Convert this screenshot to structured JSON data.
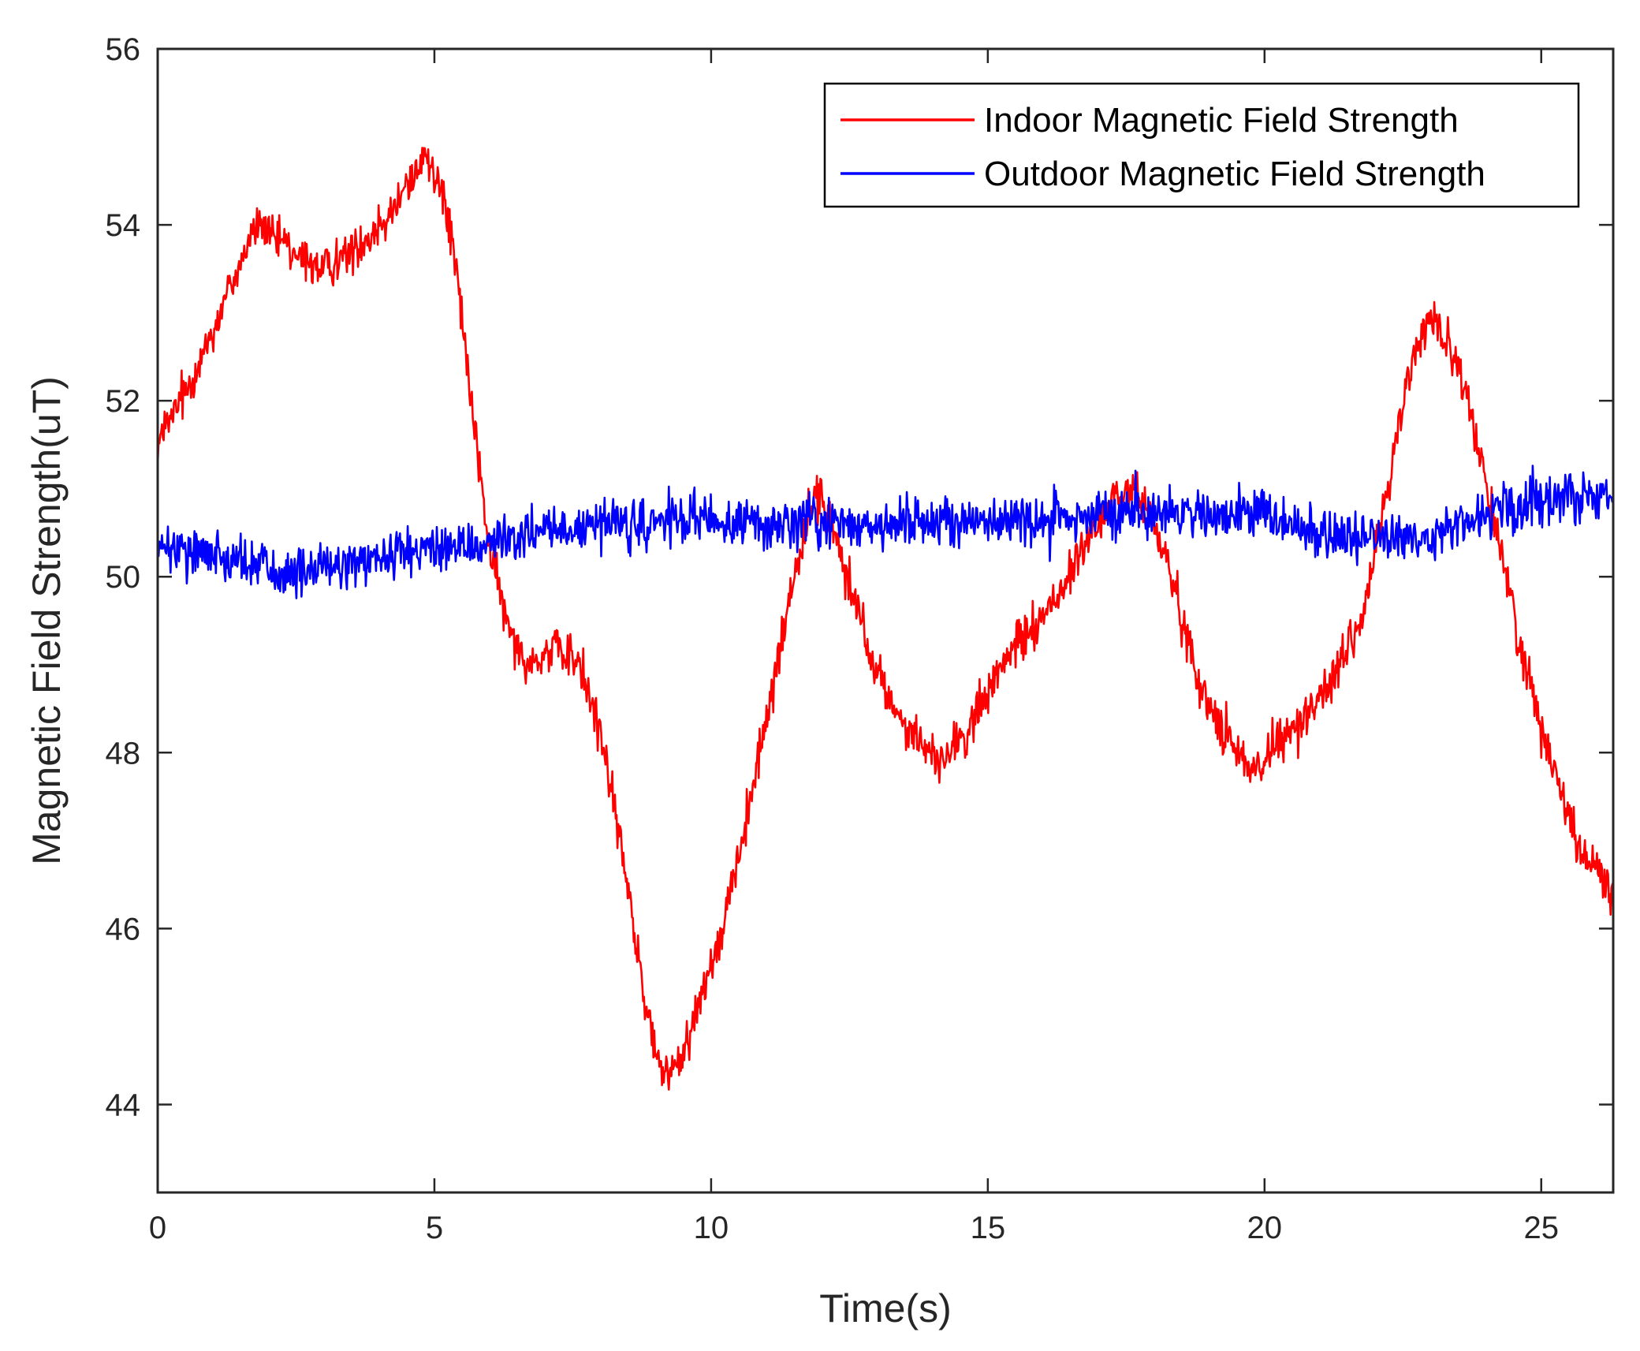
{
  "chart_data": {
    "type": "line",
    "title": "",
    "xlabel": "Time(s)",
    "ylabel": "Magnetic Field Strength(uT)",
    "xlim": [
      0,
      26.3
    ],
    "ylim": [
      43,
      56
    ],
    "xticks": [
      0,
      5,
      10,
      15,
      20,
      25
    ],
    "yticks": [
      44,
      46,
      48,
      50,
      52,
      54,
      56
    ],
    "xtick_labels": [
      "0",
      "5",
      "10",
      "15",
      "20",
      "25"
    ],
    "ytick_labels": [
      "44",
      "46",
      "48",
      "50",
      "52",
      "54",
      "56"
    ],
    "grid": false,
    "legend_position": "top-right",
    "series": [
      {
        "name": "Indoor Magnetic Field Strength",
        "color": "#ff0000",
        "noise": 0.45,
        "x": [
          0,
          0.5,
          1.0,
          1.5,
          1.8,
          2.2,
          2.6,
          3.0,
          3.5,
          4.0,
          4.5,
          4.8,
          5.1,
          5.4,
          5.7,
          6.0,
          6.3,
          6.7,
          7.2,
          7.6,
          8.0,
          8.4,
          8.8,
          9.1,
          9.5,
          10.0,
          10.5,
          11.0,
          11.5,
          11.9,
          12.3,
          12.8,
          13.3,
          13.8,
          14.2,
          14.7,
          15.2,
          15.6,
          16.2,
          16.8,
          17.3,
          17.7,
          18.2,
          18.6,
          19.0,
          19.5,
          19.8,
          20.3,
          20.8,
          21.3,
          21.8,
          22.2,
          22.6,
          23.0,
          23.3,
          23.7,
          24.2,
          24.7,
          25.2,
          25.7,
          26.3
        ],
        "y": [
          51.5,
          52.1,
          52.8,
          53.6,
          54.0,
          53.8,
          53.6,
          53.5,
          53.7,
          54.0,
          54.4,
          54.8,
          54.5,
          53.5,
          51.8,
          50.3,
          49.5,
          49.0,
          49.2,
          49.0,
          48.3,
          46.8,
          45.2,
          44.3,
          44.6,
          45.6,
          46.8,
          48.4,
          50.0,
          51.0,
          50.4,
          49.2,
          48.5,
          48.1,
          47.9,
          48.3,
          48.9,
          49.3,
          49.7,
          50.4,
          50.9,
          51.0,
          50.3,
          49.3,
          48.5,
          48.0,
          47.8,
          48.1,
          48.5,
          48.9,
          49.6,
          51.0,
          52.3,
          53.0,
          52.7,
          51.9,
          50.5,
          49.0,
          47.9,
          46.9,
          46.4
        ]
      },
      {
        "name": "Outdoor Magnetic Field Strength",
        "color": "#0000ff",
        "noise": 0.5,
        "x": [
          0,
          1.0,
          2.0,
          2.5,
          3.0,
          4.0,
          5.0,
          6.0,
          7.0,
          8.0,
          9.0,
          10.0,
          11.0,
          12.0,
          13.0,
          14.0,
          15.0,
          16.0,
          17.0,
          18.0,
          19.0,
          20.0,
          21.0,
          22.0,
          23.0,
          24.0,
          25.0,
          26.3
        ],
        "y": [
          50.3,
          50.3,
          50.1,
          50.0,
          50.1,
          50.2,
          50.3,
          50.4,
          50.5,
          50.6,
          50.6,
          50.6,
          50.6,
          50.65,
          50.6,
          50.65,
          50.6,
          50.65,
          50.7,
          50.75,
          50.7,
          50.7,
          50.5,
          50.4,
          50.45,
          50.7,
          50.85,
          51.0
        ]
      }
    ]
  }
}
